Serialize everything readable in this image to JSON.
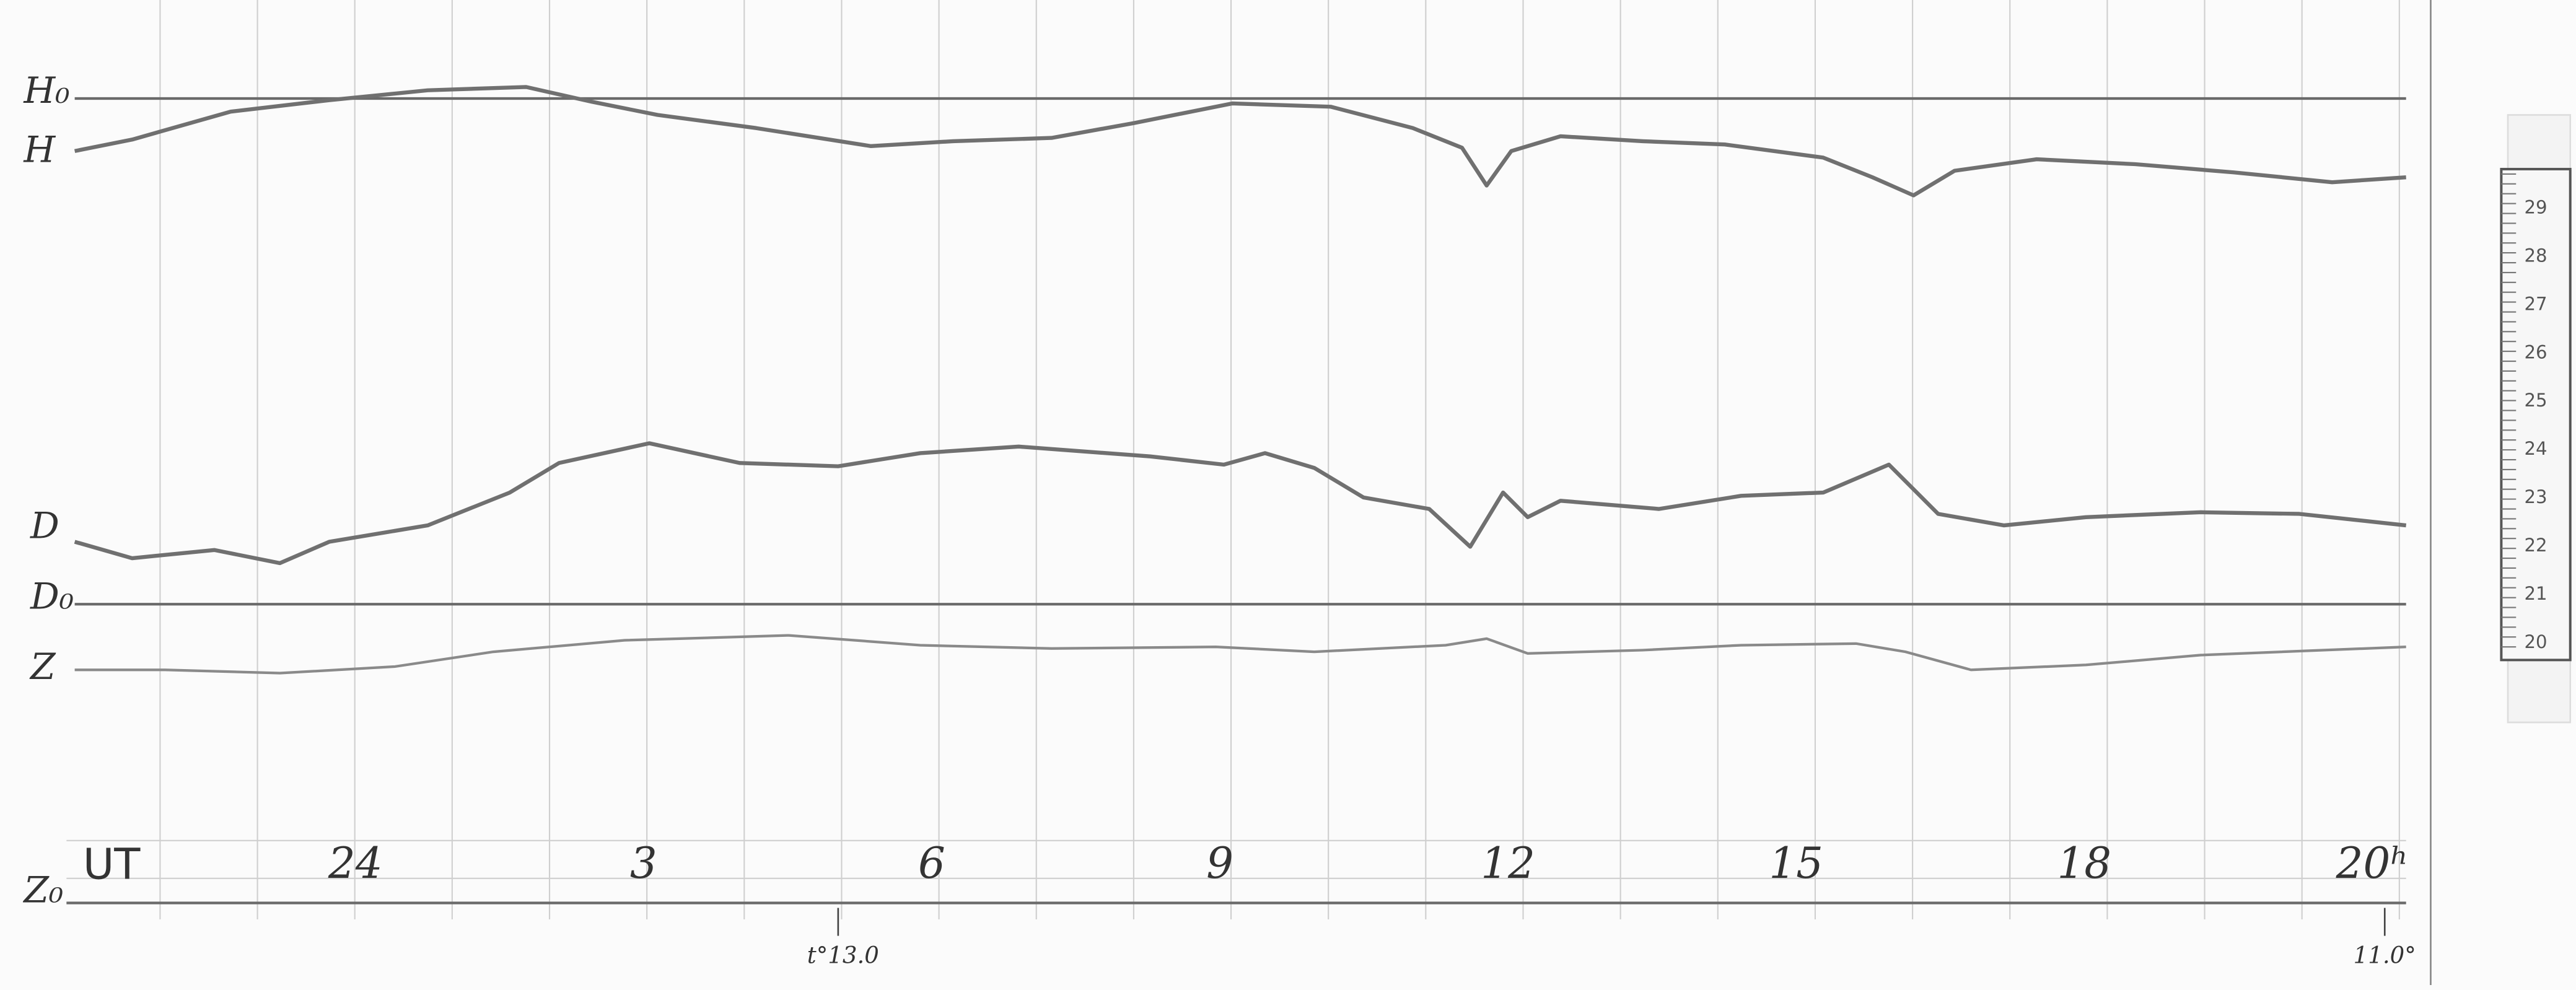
{
  "labels": {
    "h0": "H₀",
    "h": "H",
    "d": "D",
    "d0": "D₀",
    "z": "Z",
    "z0": "Z₀",
    "ut": "UT"
  },
  "hours": [
    "24",
    "3",
    "6",
    "9",
    "12",
    "15",
    "18",
    "20ʰ"
  ],
  "temperature_marks": [
    "t°13.0",
    "11.0°"
  ],
  "scale": [
    "29",
    "28",
    "27",
    "26",
    "25",
    "24",
    "23",
    "22",
    "21",
    "20"
  ]
}
